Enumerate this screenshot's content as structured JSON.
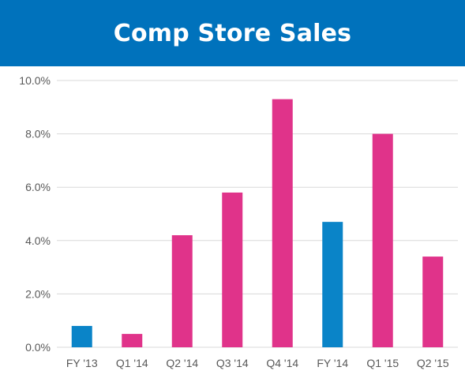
{
  "header": {
    "title": "Comp Store Sales"
  },
  "chart_data": {
    "type": "bar",
    "title": "Comp Store Sales",
    "categories": [
      "FY '13",
      "Q1 '14",
      "Q2 '14",
      "Q3 '14",
      "Q4 '14",
      "FY '14",
      "Q1 '15",
      "Q2 '15"
    ],
    "values": [
      0.8,
      0.5,
      4.2,
      5.8,
      9.3,
      4.7,
      8.0,
      3.4
    ],
    "bar_kind": [
      "fiscal-year",
      "quarter",
      "quarter",
      "quarter",
      "quarter",
      "fiscal-year",
      "quarter",
      "quarter"
    ],
    "colors": {
      "fiscal-year": "#0a84c8",
      "quarter": "#e0338a",
      "header_background": "#0072bc",
      "gridline": "#d9d9d9"
    },
    "ylim": [
      0,
      10
    ],
    "yticks": [
      "0.0%",
      "2.0%",
      "4.0%",
      "6.0%",
      "8.0%",
      "10.0%"
    ],
    "ytick_values": [
      0,
      2,
      4,
      6,
      8,
      10
    ],
    "grid": true,
    "xlabel": "",
    "ylabel": ""
  }
}
